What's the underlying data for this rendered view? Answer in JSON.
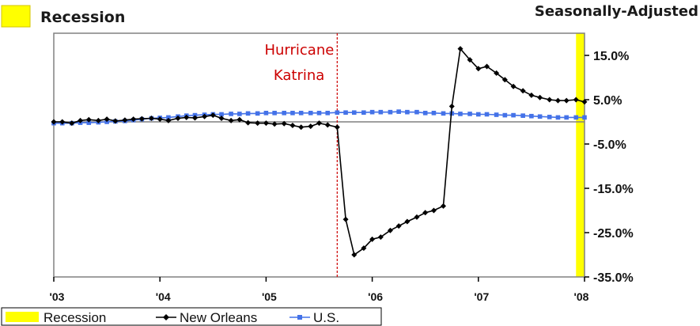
{
  "chart_data": {
    "type": "line",
    "title": "",
    "subtitle": "Seasonally-Adjusted",
    "xlabel": "",
    "ylabel": "",
    "x_ticks": [
      "'03",
      "'04",
      "'05",
      "'06",
      "'07",
      "'08"
    ],
    "x_range": [
      2003.0,
      2008.0
    ],
    "y_ticks": [
      "15.0%",
      "5.0%",
      "-5.0%",
      "-15.0%",
      "-25.0%",
      "-35.0%"
    ],
    "y_tick_values": [
      15,
      5,
      -5,
      -15,
      -25,
      -35
    ],
    "ylim": [
      -35,
      20
    ],
    "y_axis_position": "right",
    "grid": false,
    "recession": {
      "label": "Recession",
      "start": 2007.92,
      "end": 2008.0,
      "color": "#ffff00"
    },
    "annotation": {
      "lines": [
        "Hurricane",
        "Katrina"
      ],
      "x": 2005.67,
      "color": "#cc0000"
    },
    "series": [
      {
        "name": "New Orleans",
        "color": "#000000",
        "marker": "diamond",
        "x": [
          2003.0,
          2003.08,
          2003.17,
          2003.25,
          2003.33,
          2003.42,
          2003.5,
          2003.58,
          2003.67,
          2003.75,
          2003.83,
          2003.92,
          2004.0,
          2004.08,
          2004.17,
          2004.25,
          2004.33,
          2004.42,
          2004.5,
          2004.58,
          2004.67,
          2004.75,
          2004.83,
          2004.92,
          2005.0,
          2005.08,
          2005.17,
          2005.25,
          2005.33,
          2005.42,
          2005.5,
          2005.58,
          2005.67,
          2005.75,
          2005.83,
          2005.92,
          2006.0,
          2006.08,
          2006.17,
          2006.25,
          2006.33,
          2006.42,
          2006.5,
          2006.58,
          2006.67,
          2006.75,
          2006.83,
          2006.92,
          2007.0,
          2007.08,
          2007.17,
          2007.25,
          2007.33,
          2007.42,
          2007.5,
          2007.58,
          2007.67,
          2007.75,
          2007.83,
          2007.92,
          2008.0
        ],
        "values": [
          0.0,
          0.0,
          -0.3,
          0.3,
          0.5,
          0.3,
          0.6,
          0.2,
          0.4,
          0.6,
          0.7,
          0.8,
          0.6,
          0.3,
          0.8,
          1.0,
          0.9,
          1.2,
          1.5,
          0.8,
          0.3,
          0.5,
          -0.2,
          -0.3,
          -0.3,
          -0.5,
          -0.4,
          -0.8,
          -1.2,
          -1.0,
          -0.3,
          -0.7,
          -1.2,
          -22.0,
          -30.0,
          -28.5,
          -26.5,
          -26.0,
          -24.5,
          -23.5,
          -22.5,
          -21.5,
          -20.5,
          -20.0,
          -19.0,
          3.5,
          16.5,
          14.0,
          12.0,
          12.5,
          11.0,
          9.5,
          8.0,
          7.0,
          6.0,
          5.5,
          5.0,
          4.8,
          4.8,
          5.0,
          4.5
        ]
      },
      {
        "name": "U.S.",
        "color": "#4472e8",
        "marker": "square",
        "x": [
          2003.0,
          2003.08,
          2003.17,
          2003.25,
          2003.33,
          2003.42,
          2003.5,
          2003.58,
          2003.67,
          2003.75,
          2003.83,
          2003.92,
          2004.0,
          2004.08,
          2004.17,
          2004.25,
          2004.33,
          2004.42,
          2004.5,
          2004.58,
          2004.67,
          2004.75,
          2004.83,
          2004.92,
          2005.0,
          2005.08,
          2005.17,
          2005.25,
          2005.33,
          2005.42,
          2005.5,
          2005.58,
          2005.67,
          2005.75,
          2005.83,
          2005.92,
          2006.0,
          2006.08,
          2006.17,
          2006.25,
          2006.33,
          2006.42,
          2006.5,
          2006.58,
          2006.67,
          2006.75,
          2006.83,
          2006.92,
          2007.0,
          2007.08,
          2007.17,
          2007.25,
          2007.33,
          2007.42,
          2007.5,
          2007.58,
          2007.67,
          2007.75,
          2007.83,
          2007.92,
          2008.0
        ],
        "values": [
          -0.3,
          -0.3,
          -0.3,
          -0.2,
          -0.2,
          -0.1,
          0.0,
          0.1,
          0.2,
          0.4,
          0.6,
          0.8,
          0.9,
          1.0,
          1.2,
          1.4,
          1.5,
          1.6,
          1.7,
          1.7,
          1.8,
          1.8,
          1.9,
          1.9,
          2.0,
          2.0,
          2.0,
          2.0,
          2.0,
          2.0,
          2.0,
          2.0,
          2.1,
          2.1,
          2.1,
          2.1,
          2.2,
          2.2,
          2.2,
          2.3,
          2.2,
          2.2,
          2.0,
          2.0,
          1.9,
          1.9,
          1.8,
          1.8,
          1.7,
          1.7,
          1.6,
          1.5,
          1.5,
          1.4,
          1.3,
          1.2,
          1.1,
          1.0,
          1.0,
          1.0,
          1.0
        ]
      }
    ],
    "legend": {
      "position": "bottom-left",
      "items": [
        "Recession",
        "New Orleans",
        "U.S."
      ]
    }
  }
}
